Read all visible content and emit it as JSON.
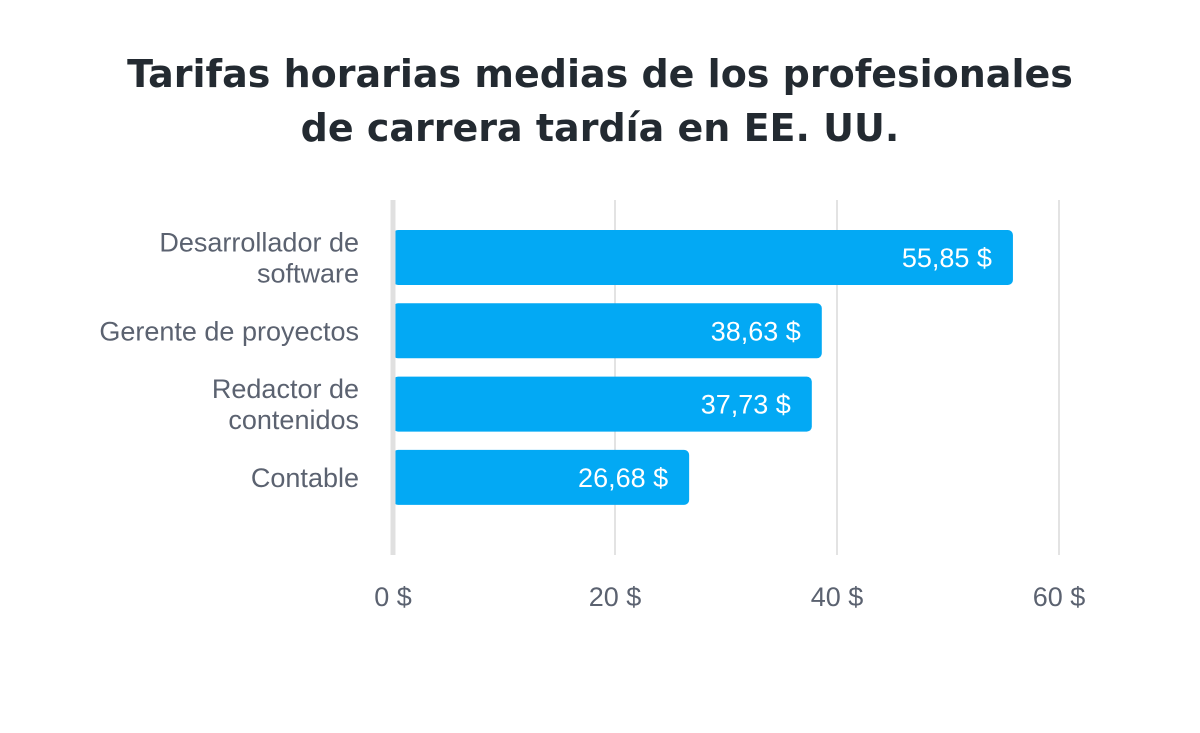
{
  "chart_data": {
    "type": "bar",
    "orientation": "horizontal",
    "title": [
      "Tarifas horarias medias de los profesionales",
      "de carrera tardía en EE. UU."
    ],
    "categories": [
      [
        "Desarrollador de",
        "software"
      ],
      [
        "Gerente de proyectos"
      ],
      [
        "Redactor de",
        "contenidos"
      ],
      [
        "Contable"
      ]
    ],
    "values": [
      55.85,
      38.63,
      37.73,
      26.68
    ],
    "value_labels": [
      "55,85 $",
      "38,63 $",
      "37,73 $",
      "26,68 $"
    ],
    "xlim": [
      0,
      60
    ],
    "x_ticks": [
      0,
      20,
      40,
      60
    ],
    "x_tick_labels": [
      "0 $",
      "20 $",
      "40 $",
      "60 $"
    ],
    "grid": "vertical",
    "bar_color": "#03a9f4",
    "grid_color": "#e3e3e3",
    "axis_color": "#e0e0e0"
  }
}
